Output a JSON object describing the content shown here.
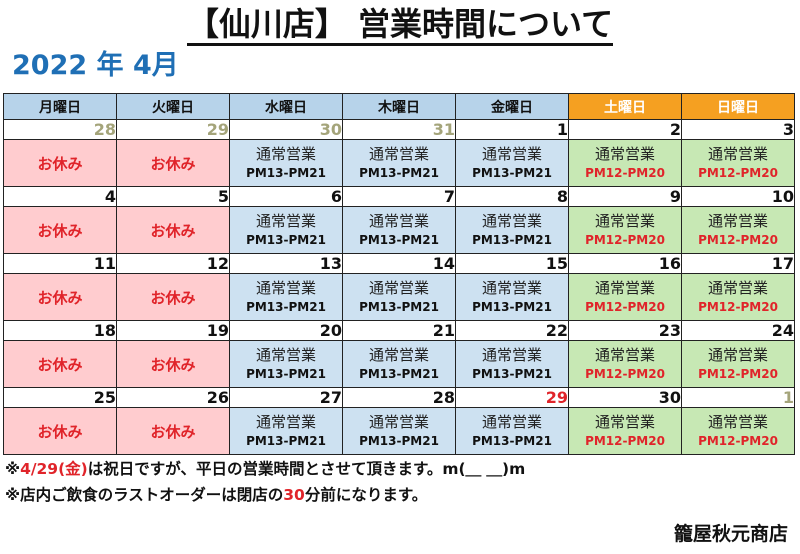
{
  "title": "【仙川店】 営業時間について",
  "month_label": "2022 年 4月",
  "weekdays": [
    "月曜日",
    "火曜日",
    "水曜日",
    "木曜日",
    "金曜日",
    "土曜日",
    "日曜日"
  ],
  "colors": {
    "header_weekday": "#b7d3ea",
    "header_weekend": "#f5a021",
    "closed_bg": "#ffcccf",
    "weekday_bg": "#cde1f1",
    "weekend_bg": "#c7e8b4",
    "accent_red": "#e0242a",
    "title_blue": "#1f6fb5"
  },
  "labels": {
    "closed": "お休み",
    "regular": "通常営業",
    "weekday_hours": "PM13-PM21",
    "weekend_hours": "PM12-PM20"
  },
  "weeks": [
    {
      "days": [
        "28",
        "29",
        "30",
        "31",
        "1",
        "2",
        "3"
      ]
    },
    {
      "days": [
        "4",
        "5",
        "6",
        "7",
        "8",
        "9",
        "10"
      ]
    },
    {
      "days": [
        "11",
        "12",
        "13",
        "14",
        "15",
        "16",
        "17"
      ]
    },
    {
      "days": [
        "18",
        "19",
        "20",
        "21",
        "22",
        "23",
        "24"
      ]
    },
    {
      "days": [
        "25",
        "26",
        "27",
        "28",
        "29",
        "30",
        "1"
      ]
    }
  ],
  "notes": {
    "line1_prefix": "※",
    "line1_date": "4/29(金)",
    "line1_rest": "は祝日ですが、平日の営業時間とさせて頂きます。m(＿ ＿)m",
    "line2_prefix": "※店内ご飲食のラストオーダーは閉店の",
    "line2_num": "30",
    "line2_suffix": "分前になります。"
  },
  "shop_name": "籠屋秋元商店"
}
